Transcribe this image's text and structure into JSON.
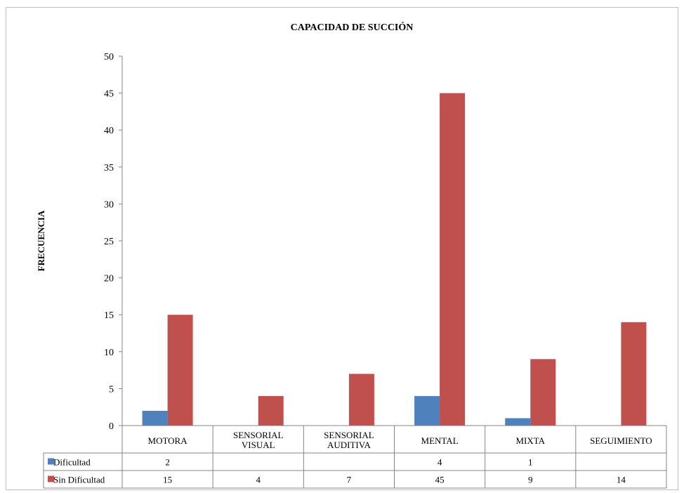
{
  "chart_data": {
    "type": "bar",
    "title": "CAPACIDAD DE SUCCIÓN",
    "ylabel": "FRECUENCIA",
    "xlabel": "",
    "ylim": [
      0,
      50
    ],
    "yticks": [
      0,
      5,
      10,
      15,
      20,
      25,
      30,
      35,
      40,
      45,
      50
    ],
    "categories": [
      [
        "MOTORA"
      ],
      [
        "SENSORIAL",
        "VISUAL"
      ],
      [
        "SENSORIAL",
        "AUDITIVA"
      ],
      [
        "MENTAL"
      ],
      [
        "MIXTA"
      ],
      [
        "SEGUIMIENTO"
      ]
    ],
    "series": [
      {
        "name": "Dificultad",
        "color": "#4f81bd",
        "values": [
          2,
          null,
          null,
          4,
          1,
          null
        ]
      },
      {
        "name": "Sin Dificultad",
        "color": "#c0504d",
        "values": [
          15,
          4,
          7,
          45,
          9,
          14
        ]
      }
    ],
    "legend": "data-table",
    "grid": false
  }
}
